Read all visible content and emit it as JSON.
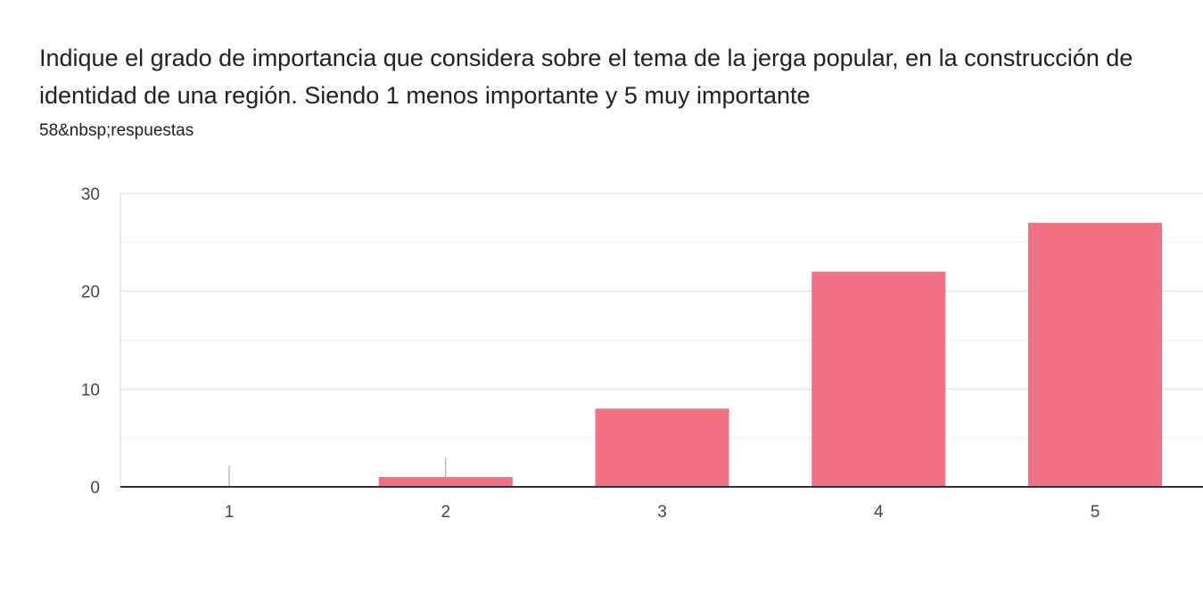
{
  "question": {
    "title": "Indique el grado de importancia que considera sobre el tema de la jerga popular, en la construcción de identidad de una región.  Siendo 1 menos importante y 5 muy importante",
    "response_count": "58&nbsp;respuestas"
  },
  "colors": {
    "bar": "#f07183",
    "grid_major": "#e6e6e6",
    "grid_minor": "#f2f2f2",
    "axis": "#333333",
    "tick_text": "#444444"
  },
  "chart_data": {
    "type": "bar",
    "categories": [
      "1",
      "2",
      "3",
      "4",
      "5"
    ],
    "values": [
      0,
      1,
      8,
      22,
      27
    ],
    "title": "",
    "xlabel": "",
    "ylabel": "",
    "ylim": [
      0,
      30
    ],
    "yticks": [
      0,
      10,
      20,
      30
    ],
    "grid": true,
    "legend": "none"
  }
}
